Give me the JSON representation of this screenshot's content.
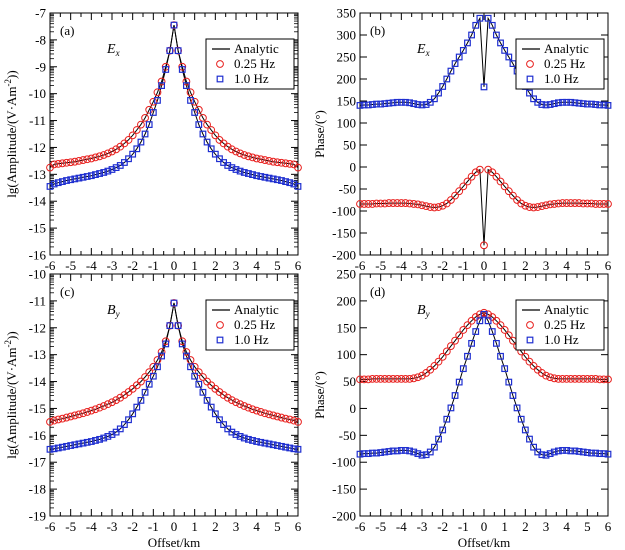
{
  "chart_data": [
    {
      "type": "line",
      "panel_label": "(a)",
      "component": "E",
      "component_sub": "x",
      "xlabel": "",
      "ylabel": "lg(Amplitude/(V·Am",
      "ylabel_sup": "-2",
      "ylabel_end": "))",
      "xlim": [
        -6,
        6
      ],
      "ylim": [
        -16,
        -7
      ],
      "xticks": [
        -6,
        -5,
        -4,
        -3,
        -2,
        -1,
        0,
        1,
        2,
        3,
        4,
        5,
        6
      ],
      "yticks": [
        -16,
        -15,
        -14,
        -13,
        -12,
        -11,
        -10,
        -9,
        -8,
        -7
      ],
      "xtick_labels": [
        "-6",
        "-5",
        "-4",
        "-3",
        "-2",
        "-1",
        "0",
        "1",
        "2",
        "3",
        "4",
        "5",
        "6"
      ],
      "ytick_labels": [
        "-16",
        "-15",
        "-14",
        "-13",
        "-12",
        "-11",
        "-10",
        "-9",
        "-8",
        "-7"
      ],
      "legend": [
        "Analytic",
        "0.25 Hz",
        "1.0 Hz"
      ],
      "legend_position": "top-right",
      "x_step": 0.2,
      "series": [
        {
          "name": "0.25 Hz",
          "half_values": [
            -7.45,
            -8.4,
            -9.0,
            -9.55,
            -9.95,
            -10.3,
            -10.6,
            -10.9,
            -11.15,
            -11.35,
            -11.55,
            -11.72,
            -11.85,
            -11.97,
            -12.07,
            -12.15,
            -12.22,
            -12.28,
            -12.33,
            -12.37,
            -12.41,
            -12.44,
            -12.47,
            -12.5,
            -12.53,
            -12.55,
            -12.57,
            -12.59,
            -12.61,
            -12.63,
            -12.75
          ]
        },
        {
          "name": "1.0 Hz",
          "half_values": [
            -7.45,
            -8.4,
            -9.1,
            -9.7,
            -10.25,
            -10.7,
            -11.15,
            -11.5,
            -11.8,
            -12.05,
            -12.25,
            -12.42,
            -12.56,
            -12.67,
            -12.75,
            -12.82,
            -12.88,
            -12.93,
            -12.97,
            -13.01,
            -13.05,
            -13.08,
            -13.11,
            -13.14,
            -13.17,
            -13.2,
            -13.23,
            -13.27,
            -13.31,
            -13.36,
            -13.45
          ]
        }
      ]
    },
    {
      "type": "line",
      "panel_label": "(b)",
      "component": "E",
      "component_sub": "x",
      "xlabel": "",
      "ylabel": "Phase/(°)",
      "xlim": [
        -6,
        6
      ],
      "ylim": [
        -200,
        350
      ],
      "xticks": [
        -6,
        -5,
        -4,
        -3,
        -2,
        -1,
        0,
        1,
        2,
        3,
        4,
        5,
        6
      ],
      "yticks": [
        -200,
        -150,
        -100,
        -50,
        0,
        50,
        100,
        150,
        200,
        250,
        300,
        350
      ],
      "xtick_labels": [
        "-6",
        "-5",
        "-4",
        "-3",
        "-2",
        "-1",
        "0",
        "1",
        "2",
        "3",
        "4",
        "5",
        "6"
      ],
      "ytick_labels": [
        "-200",
        "-150",
        "-100",
        "-50",
        "0",
        "50",
        "100",
        "150",
        "200",
        "250",
        "300",
        "350"
      ],
      "legend": [
        "Analytic",
        "0.25 Hz",
        "1.0 Hz"
      ],
      "legend_position": "top-right",
      "x_step": 0.2,
      "series": [
        {
          "name": "0.25 Hz",
          "half_values": [
            -178,
            -6,
            -12,
            -22,
            -33,
            -44,
            -55,
            -65,
            -75,
            -83,
            -88,
            -91,
            -92,
            -91,
            -89,
            -87,
            -85,
            -84,
            -83,
            -82,
            -82,
            -82,
            -82,
            -82,
            -83,
            -83,
            -83,
            -84,
            -84,
            -84,
            -84
          ]
        },
        {
          "name": "1.0 Hz",
          "half_values": [
            182,
            338,
            322,
            300,
            282,
            265,
            250,
            235,
            218,
            200,
            183,
            168,
            155,
            147,
            142,
            141,
            142,
            144,
            146,
            147,
            147,
            147,
            146,
            145,
            144,
            143,
            143,
            142,
            141,
            141,
            140
          ]
        }
      ]
    },
    {
      "type": "line",
      "panel_label": "(c)",
      "component": "B",
      "component_sub": "y",
      "xlabel": "Offset/km",
      "ylabel": "lg(Amplitude/(V·Am",
      "ylabel_sup": "-2",
      "ylabel_end": "))",
      "xlim": [
        -6,
        6
      ],
      "ylim": [
        -19,
        -10
      ],
      "xticks": [
        -6,
        -5,
        -4,
        -3,
        -2,
        -1,
        0,
        1,
        2,
        3,
        4,
        5,
        6
      ],
      "yticks": [
        -19,
        -18,
        -17,
        -16,
        -15,
        -14,
        -13,
        -12,
        -11,
        -10
      ],
      "xtick_labels": [
        "-6",
        "-5",
        "-4",
        "-3",
        "-2",
        "-1",
        "0",
        "1",
        "2",
        "3",
        "4",
        "5",
        "6"
      ],
      "ytick_labels": [
        "-19",
        "-18",
        "-17",
        "-16",
        "-15",
        "-14",
        "-13",
        "-12",
        "-11",
        "-10"
      ],
      "legend": [
        "Analytic",
        "0.25 Hz",
        "1.0 Hz"
      ],
      "legend_position": "top-right",
      "x_step": 0.2,
      "series": [
        {
          "name": "0.25 Hz",
          "half_values": [
            -11.08,
            -11.92,
            -12.5,
            -12.9,
            -13.2,
            -13.45,
            -13.65,
            -13.83,
            -14.0,
            -14.14,
            -14.27,
            -14.39,
            -14.5,
            -14.6,
            -14.69,
            -14.77,
            -14.84,
            -14.91,
            -14.97,
            -15.03,
            -15.08,
            -15.13,
            -15.18,
            -15.22,
            -15.26,
            -15.3,
            -15.34,
            -15.38,
            -15.41,
            -15.45,
            -15.5
          ]
        },
        {
          "name": "1.0 Hz",
          "half_values": [
            -11.08,
            -11.92,
            -12.6,
            -13.05,
            -13.45,
            -13.8,
            -14.1,
            -14.4,
            -14.7,
            -14.95,
            -15.2,
            -15.42,
            -15.6,
            -15.76,
            -15.88,
            -15.97,
            -16.04,
            -16.1,
            -16.15,
            -16.19,
            -16.23,
            -16.26,
            -16.29,
            -16.32,
            -16.35,
            -16.38,
            -16.41,
            -16.44,
            -16.47,
            -16.5,
            -16.52
          ]
        }
      ]
    },
    {
      "type": "line",
      "panel_label": "(d)",
      "component": "B",
      "component_sub": "y",
      "xlabel": "Offset/km",
      "ylabel": "Phase/(°)",
      "xlim": [
        -6,
        6
      ],
      "ylim": [
        -200,
        250
      ],
      "xticks": [
        -6,
        -5,
        -4,
        -3,
        -2,
        -1,
        0,
        1,
        2,
        3,
        4,
        5,
        6
      ],
      "yticks": [
        -200,
        -150,
        -100,
        -50,
        0,
        50,
        100,
        150,
        200,
        250
      ],
      "xtick_labels": [
        "-6",
        "-5",
        "-4",
        "-3",
        "-2",
        "-1",
        "0",
        "1",
        "2",
        "3",
        "4",
        "5",
        "6"
      ],
      "ytick_labels": [
        "-200",
        "-150",
        "-100",
        "-50",
        "0",
        "50",
        "100",
        "150",
        "200",
        "250"
      ],
      "legend": [
        "Analytic",
        "0.25 Hz",
        "1.0 Hz"
      ],
      "legend_position": "top-right",
      "x_step": 0.2,
      "series": [
        {
          "name": "0.25 Hz",
          "half_values": [
            178,
            175,
            170,
            163,
            155,
            146,
            136,
            126,
            116,
            106,
            96,
            87,
            79,
            72,
            66,
            61,
            58,
            56,
            55,
            55,
            55,
            55,
            55,
            55,
            55,
            55,
            55,
            55,
            54,
            54,
            54
          ]
        },
        {
          "name": "1.0 Hz",
          "half_values": [
            175,
            163,
            143,
            121,
            97,
            74,
            49,
            24,
            1,
            -20,
            -40,
            -57,
            -72,
            -81,
            -86,
            -87,
            -84,
            -81,
            -79,
            -78,
            -78,
            -79,
            -79,
            -80,
            -81,
            -82,
            -83,
            -83,
            -84,
            -84,
            -85
          ]
        }
      ]
    }
  ],
  "colors": {
    "analytic": "#000000",
    "hz025": "#e8201e",
    "hz10": "#1f2fd0",
    "hz10_fill": "#9aa6ee"
  }
}
